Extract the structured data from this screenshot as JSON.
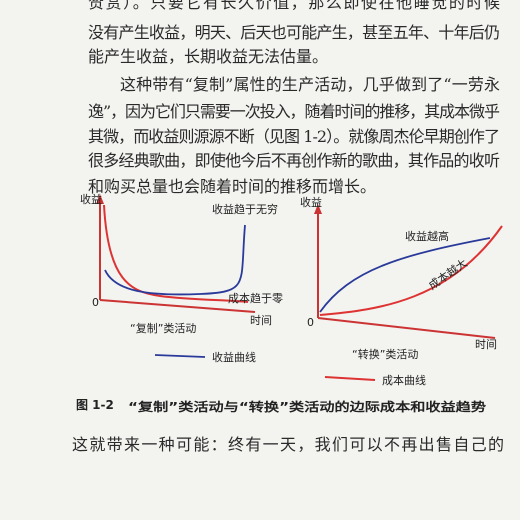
{
  "body_lines": [
    "赞赏）。只要它有长久价值，那么即使在他睡觉的时候",
    "没有产生收益，明天、后天也可能产生，甚至五年、十年后仍",
    "能产生收益，长期收益无法估量。",
    "这种带有“复制”属性的生产活动，几乎做到了“一劳永",
    "逸”，因为它们只需要一次投入，随着时间的推移，其成本微乎",
    "其微，而收益则源源不断（见图 1-2）。就像周杰伦早期创作了",
    "很多经典歌曲，即使他今后不再创作新的歌曲，其作品的收听",
    "和购买总量也会随着时间的推移而增长。"
  ],
  "figure": {
    "left": {
      "y_label": "收益",
      "curve_note": "收益趋于无穷",
      "origin": "0",
      "cost_note": "成本趋于零",
      "x_label": "时间",
      "caption": "“复制”类活动"
    },
    "right": {
      "y_label": "收益",
      "revenue_note": "收益越高",
      "cost_note": "成本越大",
      "origin": "0",
      "x_label": "时间",
      "caption": "“转换”类活动"
    },
    "legend": [
      "收益曲线",
      "成本曲线"
    ],
    "number": "图 1-2",
    "title": "“复制”类活动与“转换”类活动的边际成本和收益趋势"
  },
  "closing_line": "这就带来一种可能：终有一天，我们可以不再出售自己的"
}
